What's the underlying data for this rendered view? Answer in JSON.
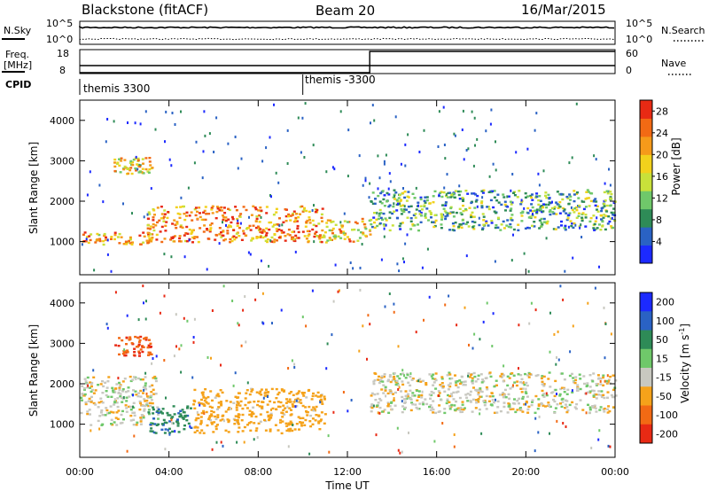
{
  "header": {
    "radar": "Blackstone (fitACF)",
    "beam": "Beam 20",
    "date": "16/Mar/2015"
  },
  "noise_panel": {
    "left_label": "N.Sky",
    "left_ticks": [
      "10^5",
      "10^0"
    ],
    "right_ticks": [
      "10^5",
      "10^0"
    ],
    "right_label": "N.Search"
  },
  "freq_panel": {
    "left_label_line1": "Freq.",
    "left_label_line2": "[MHz]",
    "left_ticks": [
      "18",
      "8"
    ],
    "right_ticks": [
      "60",
      "0"
    ],
    "right_label": "Nave",
    "freq_mhz": 10,
    "nave_before": 1,
    "nave_after": 60,
    "change_time_h": 13.0
  },
  "cpid": {
    "label": "CPID",
    "segments": [
      {
        "name": "themis 3300",
        "start_h": 0
      },
      {
        "name": "themis -3300",
        "start_h": 10.0
      }
    ]
  },
  "chart_data": [
    {
      "type": "heatmap",
      "panel": "power",
      "ylabel": "Slant Range [km]",
      "xlabel": "Time UT",
      "ylim": [
        180,
        4500
      ],
      "xlim": [
        0,
        24
      ],
      "yticks": [
        1000,
        2000,
        3000,
        4000
      ],
      "xtick_labels": [
        "00:00",
        "04:00",
        "08:00",
        "12:00",
        "16:00",
        "20:00",
        "00:00"
      ],
      "colorbar": {
        "label": "Power [dB]",
        "ticks": [
          4,
          8,
          12,
          16,
          20,
          24,
          28
        ],
        "range": [
          0,
          30
        ],
        "colors": [
          "#1c2aff",
          "#2a62c4",
          "#2e8b57",
          "#6fc86a",
          "#c8e13a",
          "#f2d11c",
          "#f59a1a",
          "#f26a14",
          "#e82a14"
        ]
      },
      "features": [
        {
          "start_h": 0.0,
          "end_h": 3.5,
          "range_km": [
            950,
            1250
          ],
          "level_db": 22
        },
        {
          "start_h": 1.5,
          "end_h": 3.2,
          "range_km": [
            2700,
            3100
          ],
          "level_db": 18
        },
        {
          "start_h": 3.0,
          "end_h": 11.0,
          "range_km": [
            1000,
            1900
          ],
          "level_db": 24
        },
        {
          "start_h": 11.0,
          "end_h": 13.0,
          "range_km": [
            1000,
            1600
          ],
          "level_db": 20
        },
        {
          "start_h": 13.0,
          "end_h": 24.0,
          "range_km": [
            1300,
            2300
          ],
          "level_db": 10
        }
      ]
    },
    {
      "type": "heatmap",
      "panel": "velocity",
      "ylabel": "Slant Range [km]",
      "xlabel": "Time UT",
      "ylim": [
        180,
        4500
      ],
      "xlim": [
        0,
        24
      ],
      "yticks": [
        1000,
        2000,
        3000,
        4000
      ],
      "xtick_labels": [
        "00:00",
        "04:00",
        "08:00",
        "12:00",
        "16:00",
        "20:00",
        "00:00"
      ],
      "colorbar": {
        "label": "Velocity [m s^-1]",
        "ticks": [
          "200",
          "100",
          "50",
          "15",
          "-15",
          "-50",
          "-100",
          "-200"
        ],
        "colors": [
          "#1c2aff",
          "#2a62c4",
          "#2e8b57",
          "#6fc86a",
          "#c8c8c0",
          "#f5a21a",
          "#f26a14",
          "#e82a14"
        ]
      },
      "features": [
        {
          "start_h": 0.0,
          "end_h": 3.5,
          "range_km": [
            1000,
            2200
          ],
          "velocity": 0
        },
        {
          "start_h": 1.5,
          "end_h": 3.2,
          "range_km": [
            2700,
            3200
          ],
          "velocity": -150
        },
        {
          "start_h": 3.0,
          "end_h": 5.0,
          "range_km": [
            800,
            1500
          ],
          "velocity": 60
        },
        {
          "start_h": 5.0,
          "end_h": 11.0,
          "range_km": [
            800,
            1900
          ],
          "velocity": -40
        },
        {
          "start_h": 13.0,
          "end_h": 24.0,
          "range_km": [
            1300,
            2300
          ],
          "velocity": 0
        }
      ]
    }
  ],
  "colorbar_labels": {
    "power": "Power [dB]",
    "velocity_main": "Velocity [m s",
    "velocity_sup": "-1",
    "velocity_close": "]"
  },
  "axis_labels": {
    "ylabel": "Slant Range [km]",
    "xlabel": "Time UT"
  }
}
